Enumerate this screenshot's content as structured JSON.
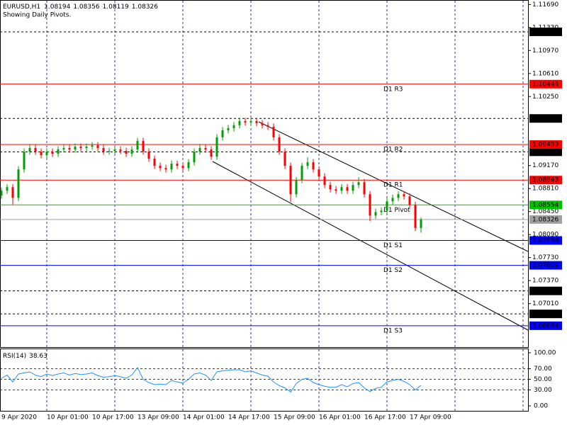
{
  "chart_data": {
    "type": "candlestick",
    "title": "EURUSD,H1",
    "subtitle": "Showing Daily Pivots.",
    "categories": [
      "9 Apr 2020",
      null,
      null,
      null,
      null,
      null,
      null,
      null,
      "10 Apr 01:00",
      null,
      null,
      null,
      null,
      null,
      null,
      null,
      "10 Apr 17:00",
      null,
      null,
      null,
      null,
      null,
      null,
      null,
      "13 Apr 09:00",
      null,
      null,
      null,
      null,
      null,
      null,
      null,
      "14 Apr 01:00",
      null,
      null,
      null,
      null,
      null,
      null,
      null,
      "14 Apr 17:00",
      null,
      null,
      null,
      null,
      null,
      null,
      null,
      "15 Apr 09:00",
      null,
      null,
      null,
      null,
      null,
      null,
      null,
      "16 Apr 01:00",
      null,
      null,
      null,
      null,
      null,
      null,
      null,
      "16 Apr 17:00",
      null,
      null,
      null,
      null,
      null,
      null,
      null,
      "17 Apr 09:00",
      null,
      null
    ],
    "open": [
      1.087,
      1.08777,
      1.08832,
      1.08665,
      1.0911,
      1.09388,
      1.09444,
      1.09388,
      1.09333,
      1.09388,
      1.09355,
      1.09422,
      1.09444,
      1.09422,
      1.09466,
      1.09444,
      1.09466,
      1.09488,
      1.09444,
      1.09388,
      1.09399,
      1.09422,
      1.09399,
      1.09355,
      1.09422,
      1.09555,
      1.09388,
      1.09277,
      1.09166,
      1.09132,
      1.0911,
      1.09199,
      1.09166,
      1.09132,
      1.09221,
      1.09388,
      1.09444,
      1.09422,
      1.0931,
      1.09611,
      1.09722,
      1.09755,
      1.098,
      1.09866,
      1.09844,
      1.09866,
      1.09833,
      1.098,
      1.09777,
      1.09611,
      1.09388,
      1.09166,
      1.08721,
      1.08943,
      1.09166,
      1.09221,
      1.0911,
      1.08999,
      1.08866,
      1.08799,
      1.08777,
      1.08832,
      1.08777,
      1.08866,
      1.0891,
      1.08721,
      1.08387,
      1.08443,
      1.08465,
      1.0861,
      1.08665,
      1.08721,
      1.08688,
      1.08554,
      1.08194
    ],
    "high": [
      1.08827,
      1.08882,
      1.08882,
      1.0916,
      1.09438,
      1.09494,
      1.09494,
      1.09438,
      1.09438,
      1.09438,
      1.09472,
      1.09494,
      1.09494,
      1.09516,
      1.09516,
      1.09516,
      1.09538,
      1.09538,
      1.09494,
      1.09449,
      1.09472,
      1.09472,
      1.09449,
      1.09472,
      1.09605,
      1.09605,
      1.09438,
      1.09327,
      1.09216,
      1.09182,
      1.09249,
      1.09249,
      1.09216,
      1.09271,
      1.09438,
      1.09494,
      1.09494,
      1.09472,
      1.09661,
      1.09772,
      1.09805,
      1.0985,
      1.09916,
      1.09916,
      1.09916,
      1.09916,
      1.09883,
      1.0985,
      1.09827,
      1.09661,
      1.09438,
      1.09216,
      1.08993,
      1.09216,
      1.093,
      1.09271,
      1.0916,
      1.09049,
      1.08916,
      1.08849,
      1.08882,
      1.08882,
      1.08916,
      1.0899,
      1.0896,
      1.08771,
      1.08493,
      1.08515,
      1.0866,
      1.08715,
      1.08771,
      1.08771,
      1.08738,
      1.08604,
      1.08356
    ],
    "low": [
      1.0865,
      1.08727,
      1.0856,
      1.08615,
      1.0906,
      1.09338,
      1.09338,
      1.09283,
      1.09283,
      1.09305,
      1.09305,
      1.09372,
      1.09372,
      1.09372,
      1.09394,
      1.09394,
      1.09416,
      1.09394,
      1.09338,
      1.09338,
      1.09349,
      1.09349,
      1.09305,
      1.09305,
      1.09372,
      1.09338,
      1.09227,
      1.09116,
      1.09082,
      1.0906,
      1.0906,
      1.09116,
      1.09082,
      1.09082,
      1.09171,
      1.09338,
      1.09372,
      1.0926,
      1.0926,
      1.09561,
      1.09672,
      1.09705,
      1.0975,
      1.09794,
      1.09794,
      1.09783,
      1.0975,
      1.09727,
      1.09561,
      1.09338,
      1.09116,
      1.086,
      1.08671,
      1.08893,
      1.09116,
      1.0906,
      1.08949,
      1.08816,
      1.08749,
      1.08727,
      1.08727,
      1.08727,
      1.08727,
      1.08816,
      1.08671,
      1.083,
      1.08337,
      1.08393,
      1.08415,
      1.0856,
      1.08615,
      1.08638,
      1.08504,
      1.08144,
      1.08119
    ],
    "close": [
      1.08777,
      1.08832,
      1.08665,
      1.0911,
      1.09388,
      1.09444,
      1.09388,
      1.09333,
      1.09388,
      1.09355,
      1.09422,
      1.09444,
      1.09422,
      1.09466,
      1.09444,
      1.09466,
      1.09488,
      1.09444,
      1.09388,
      1.09399,
      1.09422,
      1.09399,
      1.09355,
      1.09422,
      1.09555,
      1.09388,
      1.09277,
      1.09166,
      1.09132,
      1.0911,
      1.09199,
      1.09166,
      1.09132,
      1.09221,
      1.09388,
      1.09444,
      1.09422,
      1.0931,
      1.09611,
      1.09722,
      1.09755,
      1.098,
      1.09866,
      1.09844,
      1.09866,
      1.09833,
      1.098,
      1.09777,
      1.09611,
      1.09388,
      1.09166,
      1.08721,
      1.08943,
      1.09166,
      1.09221,
      1.0911,
      1.08999,
      1.08866,
      1.08799,
      1.08777,
      1.08832,
      1.08777,
      1.08866,
      1.0891,
      1.08721,
      1.08387,
      1.08443,
      1.08465,
      1.0861,
      1.08665,
      1.08721,
      1.08688,
      1.08554,
      1.08194,
      1.08326
    ],
    "up_color": "#00a000",
    "down_color": "#ff0000",
    "ylim": [
      1.0633,
      1.1176
    ],
    "yticks": [
      {
        "value": 1.1169,
        "label": "1.11690"
      },
      {
        "value": 1.1133,
        "label": "1.11330"
      },
      {
        "value": 1.1097,
        "label": "1.10970"
      },
      {
        "value": 1.1061,
        "label": "1.10610"
      },
      {
        "value": 1.1025,
        "label": "1.10250"
      },
      {
        "value": 1.0917,
        "label": "1.09170"
      },
      {
        "value": 1.0881,
        "label": "1.08810"
      },
      {
        "value": 1.0845,
        "label": "1.08450"
      },
      {
        "value": 1.0809,
        "label": "1.08090"
      },
      {
        "value": 1.0773,
        "label": "1.07730"
      },
      {
        "value": 1.0737,
        "label": "1.07370"
      },
      {
        "value": 1.0701,
        "label": "1.07010"
      }
    ],
    "pivots": [
      {
        "label": "D1 R3",
        "value": 1.10444,
        "color": "#ff0000"
      },
      {
        "label": "D1 R2",
        "value": 1.09499,
        "color": "#ff0000"
      },
      {
        "label": "D1 R1",
        "value": 1.08943,
        "color": "#ff0000"
      },
      {
        "label": "D1 Pivot",
        "value": 1.08554,
        "color": "#00c000"
      },
      {
        "label": "D1 S1",
        "value": 1.07998,
        "color": "#0000ff"
      },
      {
        "label": "D1 S2",
        "value": 1.07609,
        "color": "#0000ff"
      },
      {
        "label": "D1 S3",
        "value": 1.06664,
        "color": "#0000ff"
      }
    ],
    "hlines": [
      1.11262,
      1.09907,
      1.09385,
      1.07209,
      1.06849
    ],
    "current_price": 1.08326,
    "rsi": {
      "label": "RSI(14)",
      "color": "#1e90ff",
      "values": [
        52,
        58,
        45,
        60,
        62,
        64,
        58,
        55,
        60,
        57,
        60,
        62,
        58,
        61,
        59,
        60,
        62,
        57,
        54,
        55,
        57,
        55,
        52,
        58,
        72,
        50,
        44,
        40,
        41,
        40,
        48,
        45,
        43,
        50,
        60,
        62,
        58,
        48,
        64,
        66,
        67,
        68,
        68,
        64,
        66,
        62,
        58,
        56,
        45,
        38,
        34,
        26,
        42,
        50,
        52,
        44,
        40,
        37,
        35,
        35,
        40,
        36,
        42,
        44,
        34,
        27,
        33,
        35,
        45,
        48,
        50,
        46,
        40,
        30,
        38.63
      ],
      "ylim": [
        0,
        100
      ],
      "yticks": [
        {
          "value": 100,
          "label": "100.00"
        },
        {
          "value": 70,
          "label": "70.00"
        },
        {
          "value": 50,
          "label": "50.00"
        },
        {
          "value": 30,
          "label": "30.00"
        },
        {
          "value": 0,
          "label": "0.00"
        }
      ]
    }
  }
}
